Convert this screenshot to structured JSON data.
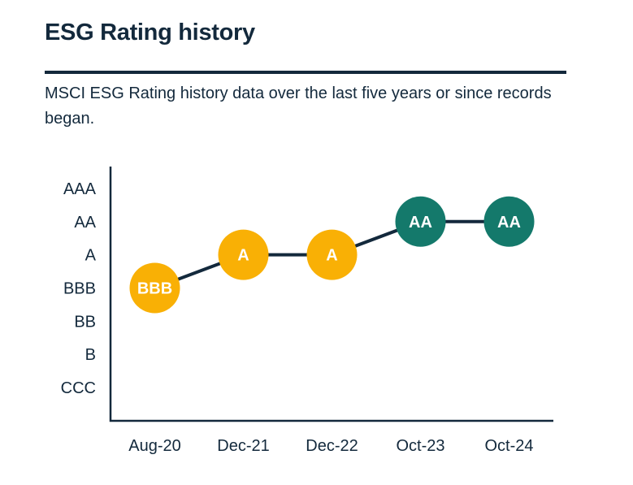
{
  "header": {
    "title": "ESG Rating history",
    "subtitle": "MSCI ESG Rating history data over the last five years or since records began."
  },
  "colors": {
    "navy": "#13293C",
    "amber": "#F9B005",
    "teal": "#14796B",
    "point_label_text": "#FFFFFF",
    "background": "#FFFFFF"
  },
  "chart_data": {
    "type": "line",
    "title": "ESG Rating history",
    "xlabel": "",
    "ylabel": "",
    "x_categories": [
      "Aug-20",
      "Dec-21",
      "Dec-22",
      "Oct-23",
      "Oct-24"
    ],
    "y_categories_bottom_to_top": [
      "CCC",
      "B",
      "BB",
      "BBB",
      "A",
      "AA",
      "AAA"
    ],
    "series": [
      {
        "name": "MSCI ESG Rating",
        "values": [
          "BBB",
          "A",
          "A",
          "AA",
          "AA"
        ],
        "point_colors": [
          "#F9B005",
          "#F9B005",
          "#F9B005",
          "#14796B",
          "#14796B"
        ]
      }
    ],
    "grid": false,
    "legend_position": "none",
    "marker_style": "labeled-circle",
    "line_color": "#13293C"
  }
}
